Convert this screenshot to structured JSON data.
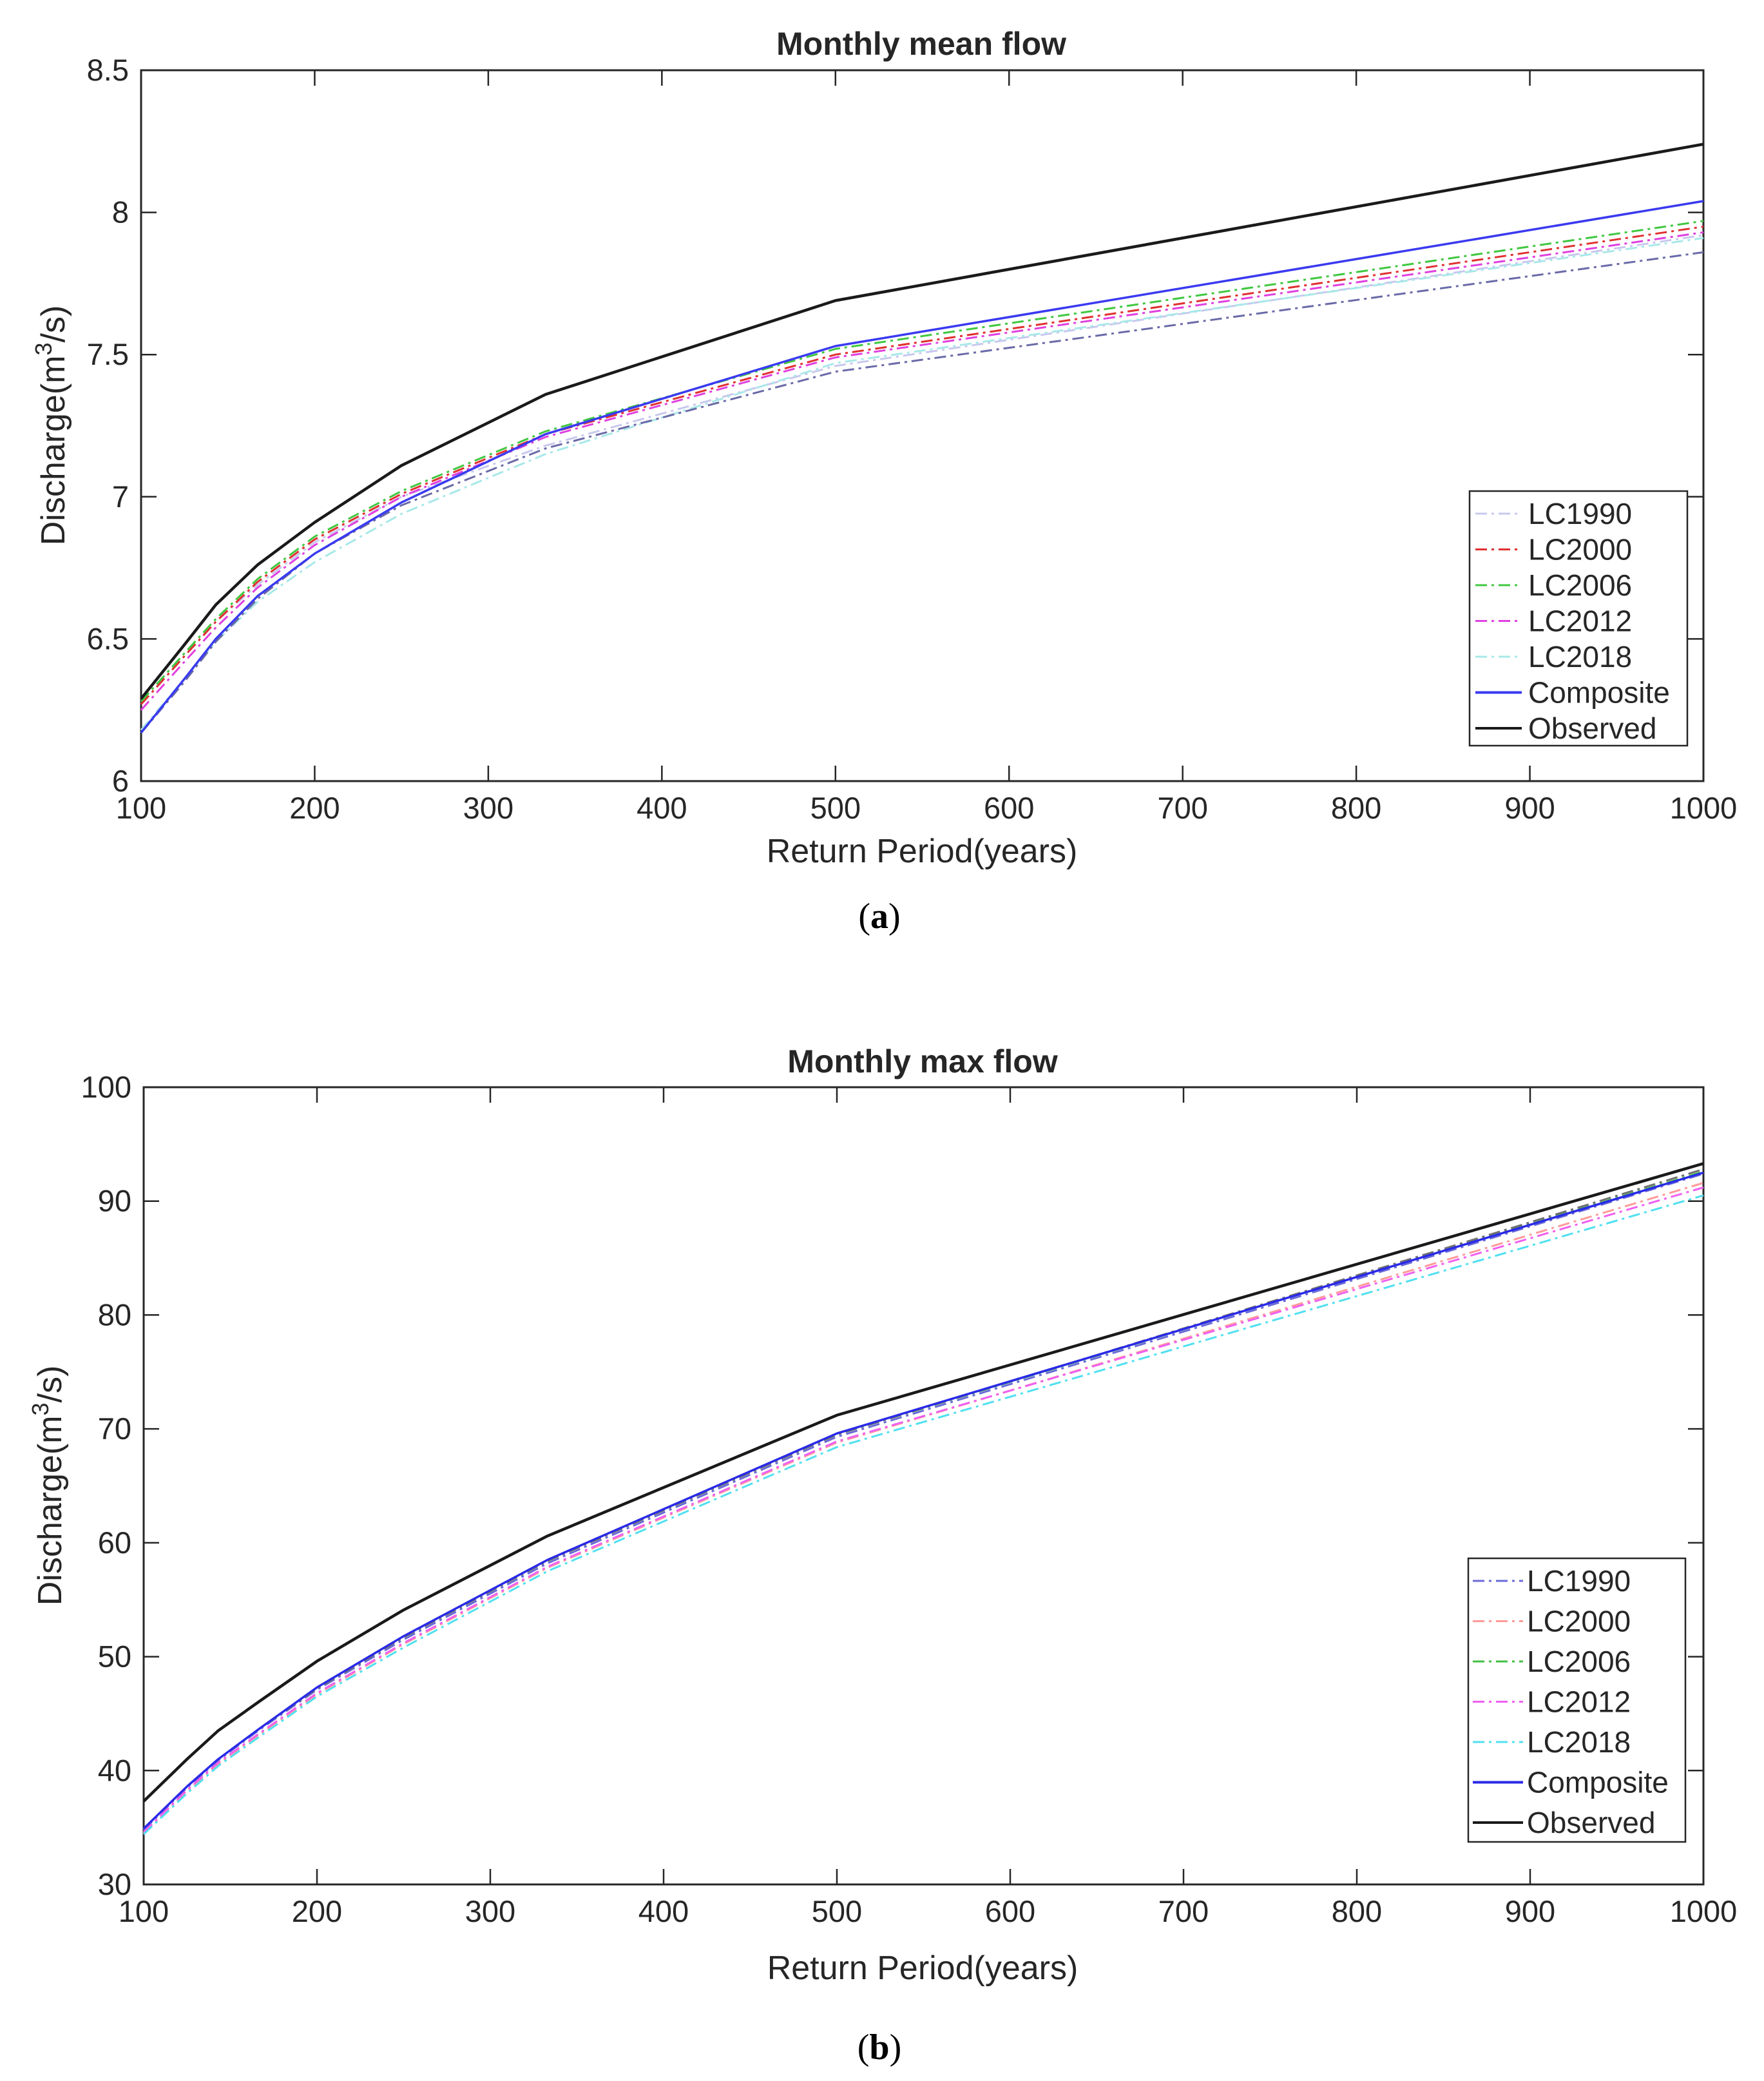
{
  "chart_data": [
    {
      "type": "line",
      "title": "Monthly mean flow",
      "xlabel": "Return Period(years)",
      "ylabel_prefix": "Discharge(m",
      "ylabel_sup": "3",
      "ylabel_suffix": "/s)",
      "xlim": [
        100,
        1000
      ],
      "ylim": [
        6,
        8.5
      ],
      "xticks": [
        100,
        200,
        300,
        400,
        500,
        600,
        700,
        800,
        900,
        1000
      ],
      "yticks": [
        6,
        6.5,
        7,
        7.5,
        8,
        8.5
      ],
      "ytick_labels": [
        "6",
        "6.5",
        "7",
        "7.5",
        "8",
        "8.5"
      ],
      "x": [
        100,
        125,
        143,
        167,
        200,
        250,
        333,
        500,
        1000
      ],
      "legend_position": "lower-right",
      "caption": "a",
      "series": [
        {
          "name": "LC1990",
          "color": "#c8c8ee",
          "style": "dashdot",
          "values": [
            6.27,
            6.44,
            6.56,
            6.69,
            6.84,
            7.0,
            7.18,
            7.46,
            7.92
          ]
        },
        {
          "name": "LC2000",
          "color": "#e03030",
          "style": "dashdot",
          "values": [
            6.27,
            6.44,
            6.56,
            6.7,
            6.85,
            7.01,
            7.22,
            7.5,
            7.95
          ]
        },
        {
          "name": "LC2006",
          "color": "#40c840",
          "style": "dashdot",
          "values": [
            6.28,
            6.45,
            6.57,
            6.71,
            6.86,
            7.02,
            7.23,
            7.52,
            7.97
          ]
        },
        {
          "name": "LC2012",
          "color": "#e040e0",
          "style": "dashdot",
          "values": [
            6.25,
            6.42,
            6.54,
            6.68,
            6.83,
            7.0,
            7.21,
            7.49,
            7.93
          ]
        },
        {
          "name": "LC2018",
          "color": "#a8e8e8",
          "style": "dashdot",
          "values": [
            6.18,
            6.36,
            6.49,
            6.63,
            6.77,
            6.94,
            7.15,
            7.47,
            7.91
          ]
        },
        {
          "name": "",
          "color": "#6a6aa8",
          "style": "dashdot",
          "legend": false,
          "values": [
            6.17,
            6.35,
            6.49,
            6.64,
            6.8,
            6.97,
            7.17,
            7.44,
            7.86
          ]
        },
        {
          "name": "Composite",
          "color": "#3a3af0",
          "style": "solid",
          "values": [
            6.17,
            6.36,
            6.5,
            6.65,
            6.8,
            6.98,
            7.22,
            7.53,
            8.04
          ]
        },
        {
          "name": "Observed",
          "color": "#1a1a1a",
          "style": "solid",
          "values": [
            6.29,
            6.48,
            6.62,
            6.76,
            6.91,
            7.11,
            7.36,
            7.69,
            8.24
          ]
        }
      ]
    },
    {
      "type": "line",
      "title": "Monthly max flow",
      "xlabel": "Return Period(years)",
      "ylabel_prefix": "Discharge(m",
      "ylabel_sup": "3",
      "ylabel_suffix": "/s)",
      "xlim": [
        100,
        1000
      ],
      "ylim": [
        30,
        100
      ],
      "xticks": [
        100,
        200,
        300,
        400,
        500,
        600,
        700,
        800,
        900,
        1000
      ],
      "yticks": [
        30,
        40,
        50,
        60,
        70,
        80,
        90,
        100
      ],
      "ytick_labels": [
        "30",
        "40",
        "50",
        "60",
        "70",
        "80",
        "90",
        "100"
      ],
      "x": [
        100,
        125,
        143,
        167,
        200,
        250,
        333,
        500,
        1000
      ],
      "legend_position": "lower-right",
      "caption": "b",
      "series": [
        {
          "name": "LC1990",
          "color": "#6a6ad8",
          "style": "dashdot",
          "values": [
            34.8,
            38.5,
            40.9,
            43.6,
            47.1,
            51.5,
            58.2,
            69.3,
            92.4
          ]
        },
        {
          "name": "LC2000",
          "color": "#ff9a9a",
          "style": "dashdot",
          "values": [
            34.5,
            38.2,
            40.6,
            43.2,
            46.7,
            51.1,
            57.8,
            68.8,
            91.6
          ]
        },
        {
          "name": "LC2006",
          "color": "#40c040",
          "style": "dashdot",
          "values": [
            34.9,
            38.6,
            41.0,
            43.7,
            47.2,
            51.7,
            58.4,
            69.5,
            92.6
          ]
        },
        {
          "name": "LC2012",
          "color": "#f060f0",
          "style": "dashdot",
          "values": [
            34.6,
            38.3,
            40.7,
            43.3,
            46.8,
            51.2,
            57.9,
            68.9,
            91.2
          ]
        },
        {
          "name": "LC2018",
          "color": "#50e0f0",
          "style": "dashdot",
          "values": [
            34.4,
            38.0,
            40.4,
            43.0,
            46.5,
            50.8,
            57.5,
            68.4,
            90.5
          ]
        },
        {
          "name": "",
          "color": "#707070",
          "style": "dashdot",
          "legend": false,
          "values": [
            34.9,
            38.6,
            41.0,
            43.7,
            47.2,
            51.7,
            58.4,
            69.5,
            92.8
          ]
        },
        {
          "name": "Composite",
          "color": "#2a2ae8",
          "style": "solid",
          "values": [
            34.9,
            38.6,
            41.0,
            43.7,
            47.3,
            51.8,
            58.5,
            69.6,
            92.5
          ]
        },
        {
          "name": "Observed",
          "color": "#1a1a1a",
          "style": "solid",
          "values": [
            37.3,
            41.0,
            43.5,
            46.1,
            49.6,
            54.1,
            60.6,
            71.2,
            93.3
          ]
        }
      ]
    }
  ]
}
